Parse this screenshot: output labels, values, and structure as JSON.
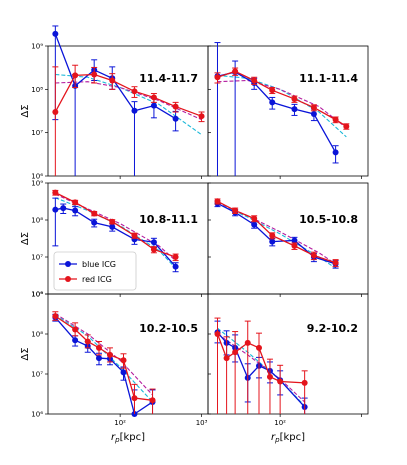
{
  "chart_data": {
    "type": "line",
    "xscale": "log",
    "yscale": "log",
    "xlabel": "r_p[kpc]",
    "ylabel": "ΔΣ",
    "colors": {
      "blue": "#0a14d8",
      "red": "#e4141c",
      "cyan": "#1ab8d8",
      "purple": "#b41ea0",
      "frame": "#000000"
    },
    "legend": {
      "position": "center-left of middle-left panel",
      "entries": [
        "blue ICG",
        "red ICG"
      ]
    },
    "panels": [
      {
        "label": "11.4-11.7",
        "col": 0,
        "row": 0,
        "blue": {
          "x": [
            16,
            28,
            48,
            80,
            150,
            260,
            480
          ],
          "y": [
            1900000000.0,
            120000000.0,
            280000000.0,
            180000000.0,
            32000000.0,
            42000000.0,
            21000000.0
          ],
          "err_lo": [
            1880000000.0,
            119000000.0,
            120000000.0,
            80000000.0,
            31800000.0,
            20000000.0,
            10000000.0
          ],
          "err_hi": [
            1000000000.0,
            100000000.0,
            200000000.0,
            150000000.0,
            20000000.0,
            20000000.0,
            10000000.0
          ]
        },
        "red": {
          "x": [
            16,
            28,
            48,
            80,
            150,
            260,
            480,
            1000
          ],
          "y": [
            30000000.0,
            210000000.0,
            220000000.0,
            160000000.0,
            90000000.0,
            65000000.0,
            40000000.0,
            24000000.0
          ],
          "err_lo": [
            29900000.0,
            100000000.0,
            80000000.0,
            60000000.0,
            25000000.0,
            15000000.0,
            10000000.0,
            6000000.0
          ],
          "err_hi": [
            300000000.0,
            150000000.0,
            100000000.0,
            70000000.0,
            25000000.0,
            15000000.0,
            10000000.0,
            6000000.0
          ]
        },
        "cyan": {
          "x": [
            16,
            40,
            100,
            300,
            1000
          ],
          "y": [
            220000000.0,
            190000000.0,
            110000000.0,
            45000000.0,
            9000000.0
          ]
        },
        "purple": {
          "x": [
            16,
            40,
            100,
            300,
            1000
          ],
          "y": [
            140000000.0,
            150000000.0,
            110000000.0,
            55000000.0,
            20000000.0
          ]
        }
      },
      {
        "label": "11.1-11.4",
        "col": 1,
        "row": 0,
        "blue": {
          "x": [
            17,
            28,
            48,
            80,
            150,
            260,
            480
          ],
          "y": [
            200000000.0,
            250000000.0,
            140000000.0,
            50000000.0,
            35000000.0,
            27000000.0,
            3500000.0
          ],
          "err_lo": [
            199000000.0,
            249000000.0,
            40000000.0,
            15000000.0,
            10000000.0,
            8000000.0,
            1500000.0
          ],
          "err_hi": [
            1000000000.0,
            200000000.0,
            40000000.0,
            15000000.0,
            10000000.0,
            8000000.0,
            1500000.0
          ]
        },
        "red": {
          "x": [
            17,
            28,
            48,
            80,
            150,
            260,
            480,
            650
          ],
          "y": [
            190000000.0,
            260000000.0,
            160000000.0,
            95000000.0,
            60000000.0,
            38000000.0,
            20000000.0,
            14000000.0
          ],
          "err_lo": [
            50000000.0,
            50000000.0,
            30000000.0,
            15000000.0,
            10000000.0,
            6000000.0,
            3000000.0,
            2000000.0
          ],
          "err_hi": [
            50000000.0,
            50000000.0,
            30000000.0,
            15000000.0,
            10000000.0,
            6000000.0,
            3000000.0,
            2000000.0
          ]
        },
        "cyan": {
          "x": [
            17,
            40,
            100,
            300,
            650
          ],
          "y": [
            210000000.0,
            180000000.0,
            100000000.0,
            30000000.0,
            8000000.0
          ]
        },
        "purple": {
          "x": [
            17,
            40,
            100,
            300,
            650
          ],
          "y": [
            150000000.0,
            160000000.0,
            100000000.0,
            40000000.0,
            13000000.0
          ]
        }
      },
      {
        "label": "10.8-11.1",
        "col": 0,
        "row": 1,
        "blue": {
          "x": [
            16,
            20,
            28,
            48,
            80,
            150,
            260,
            480
          ],
          "y": [
            190000000.0,
            210000000.0,
            180000000.0,
            85000000.0,
            65000000.0,
            30000000.0,
            25000000.0,
            5500000.0
          ],
          "err_lo": [
            170000000.0,
            60000000.0,
            50000000.0,
            20000000.0,
            15000000.0,
            8000000.0,
            7000000.0,
            1500000.0
          ],
          "err_hi": [
            200000000.0,
            60000000.0,
            50000000.0,
            20000000.0,
            15000000.0,
            8000000.0,
            7000000.0,
            1500000.0
          ]
        },
        "red": {
          "x": [
            16,
            28,
            48,
            80,
            150,
            260,
            480
          ],
          "y": [
            550000000.0,
            300000000.0,
            150000000.0,
            90000000.0,
            38000000.0,
            16000000.0,
            10000000.0
          ],
          "err_lo": [
            80000000.0,
            40000000.0,
            20000000.0,
            12000000.0,
            6000000.0,
            3000000.0,
            2000000.0
          ],
          "err_hi": [
            80000000.0,
            40000000.0,
            20000000.0,
            12000000.0,
            6000000.0,
            3000000.0,
            2000000.0
          ]
        },
        "cyan": {
          "x": [
            16,
            40,
            100,
            300,
            480
          ],
          "y": [
            400000000.0,
            180000000.0,
            70000000.0,
            15000000.0,
            5000000.0
          ]
        },
        "purple": {
          "x": [
            16,
            40,
            100,
            300,
            480
          ],
          "y": [
            500000000.0,
            200000000.0,
            80000000.0,
            20000000.0,
            8000000.0
          ]
        }
      },
      {
        "label": "10.5-10.8",
        "col": 1,
        "row": 1,
        "blue": {
          "x": [
            17,
            28,
            48,
            80,
            150,
            260,
            480
          ],
          "y": [
            280000000.0,
            160000000.0,
            75000000.0,
            26000000.0,
            28000000.0,
            10000000.0,
            6500000.0
          ],
          "err_lo": [
            50000000.0,
            30000000.0,
            15000000.0,
            6000000.0,
            6000000.0,
            2500000.0,
            1500000.0
          ],
          "err_hi": [
            50000000.0,
            30000000.0,
            15000000.0,
            6000000.0,
            6000000.0,
            2500000.0,
            1500000.0
          ]
        },
        "red": {
          "x": [
            17,
            28,
            48,
            80,
            150,
            260,
            480
          ],
          "y": [
            320000000.0,
            180000000.0,
            110000000.0,
            38000000.0,
            20000000.0,
            11000000.0,
            7000000.0
          ],
          "err_lo": [
            50000000.0,
            30000000.0,
            20000000.0,
            7000000.0,
            4000000.0,
            2500000.0,
            1500000.0
          ],
          "err_hi": [
            50000000.0,
            30000000.0,
            20000000.0,
            7000000.0,
            4000000.0,
            2500000.0,
            1500000.0
          ]
        },
        "cyan": {
          "x": [
            17,
            40,
            100,
            300,
            480
          ],
          "y": [
            280000000.0,
            120000000.0,
            42000000.0,
            10000000.0,
            5000000.0
          ]
        },
        "purple": {
          "x": [
            17,
            40,
            100,
            300,
            480
          ],
          "y": [
            300000000.0,
            130000000.0,
            48000000.0,
            13000000.0,
            6500000.0
          ]
        }
      },
      {
        "label": "10.2-10.5",
        "col": 0,
        "row": 2,
        "blue": {
          "x": [
            16,
            28,
            40,
            55,
            75,
            110,
            150,
            250
          ],
          "y": [
            260000000.0,
            70000000.0,
            50000000.0,
            25000000.0,
            24000000.0,
            11000000.0,
            1000000.0,
            2000000.0
          ],
          "err_lo": [
            50000000.0,
            20000000.0,
            15000000.0,
            8000000.0,
            7000000.0,
            4000000.0,
            900000.0,
            1500000.0
          ],
          "err_hi": [
            50000000.0,
            20000000.0,
            15000000.0,
            8000000.0,
            7000000.0,
            4000000.0,
            3000000.0,
            2000000.0
          ]
        },
        "red": {
          "x": [
            16,
            28,
            40,
            55,
            75,
            110,
            150,
            250
          ],
          "y": [
            280000000.0,
            130000000.0,
            65000000.0,
            45000000.0,
            30000000.0,
            22000000.0,
            2500000.0,
            2200000.0
          ],
          "err_lo": [
            60000000.0,
            40000000.0,
            20000000.0,
            15000000.0,
            10000000.0,
            8000000.0,
            1500000.0,
            1500000.0
          ],
          "err_hi": [
            80000000.0,
            60000000.0,
            30000000.0,
            20000000.0,
            15000000.0,
            10000000.0,
            3000000.0,
            2000000.0
          ]
        },
        "cyan": {
          "x": [
            16,
            40,
            100,
            250
          ],
          "y": [
            300000000.0,
            90000000.0,
            15000000.0,
            2000000.0
          ]
        },
        "purple": {
          "x": [
            16,
            40,
            100,
            250
          ],
          "y": [
            320000000.0,
            100000000.0,
            22000000.0,
            3000000.0
          ]
        }
      },
      {
        "label": "9.2-10.2",
        "col": 1,
        "row": 2,
        "blue": {
          "x": [
            17,
            22,
            28,
            40,
            55,
            75,
            100,
            200
          ],
          "y": [
            110000000.0,
            60000000.0,
            45000000.0,
            8000000.0,
            16000000.0,
            12000000.0,
            7000000.0,
            1500000.0
          ],
          "err_lo": [
            50000000.0,
            30000000.0,
            25000000.0,
            6000000.0,
            8000000.0,
            6000000.0,
            4000000.0,
            1000000.0
          ],
          "err_hi": [
            100000000.0,
            60000000.0,
            50000000.0,
            10000000.0,
            10000000.0,
            8000000.0,
            5000000.0,
            1000000.0
          ]
        },
        "red": {
          "x": [
            17,
            22,
            28,
            40,
            55,
            75,
            100,
            200
          ],
          "y": [
            100000000.0,
            25000000.0,
            35000000.0,
            60000000.0,
            45000000.0,
            8500000.0,
            6500000.0,
            6000000.0
          ],
          "err_lo": [
            99000000.0,
            24900000.0,
            34900000.0,
            59900000.0,
            44000000.0,
            8400000.0,
            6400000.0,
            5900000.0
          ],
          "err_hi": [
            150000000.0,
            60000000.0,
            80000000.0,
            150000000.0,
            60000000.0,
            15000000.0,
            10000000.0,
            6000000.0
          ]
        },
        "cyan": {
          "x": [
            17,
            40,
            100,
            200
          ],
          "y": [
            140000000.0,
            35000000.0,
            7000000.0,
            1600000.0
          ]
        },
        "purple": {
          "x": [
            17,
            40,
            100,
            200
          ],
          "y": [
            100000000.0,
            30000000.0,
            7500000.0,
            2000000.0
          ]
        }
      }
    ],
    "xlim": [
      13,
      1200
    ],
    "ylim": [
      1000000.0,
      1000000000.0
    ],
    "xticks": {
      "values": [
        100,
        1000
      ],
      "labels": [
        "10²",
        "10³"
      ]
    },
    "yticks": {
      "values": [
        1000000.0,
        10000000.0,
        100000000.0,
        1000000000.0
      ],
      "labels": [
        "10⁶",
        "10⁷",
        "10⁸",
        "10⁹"
      ]
    }
  }
}
